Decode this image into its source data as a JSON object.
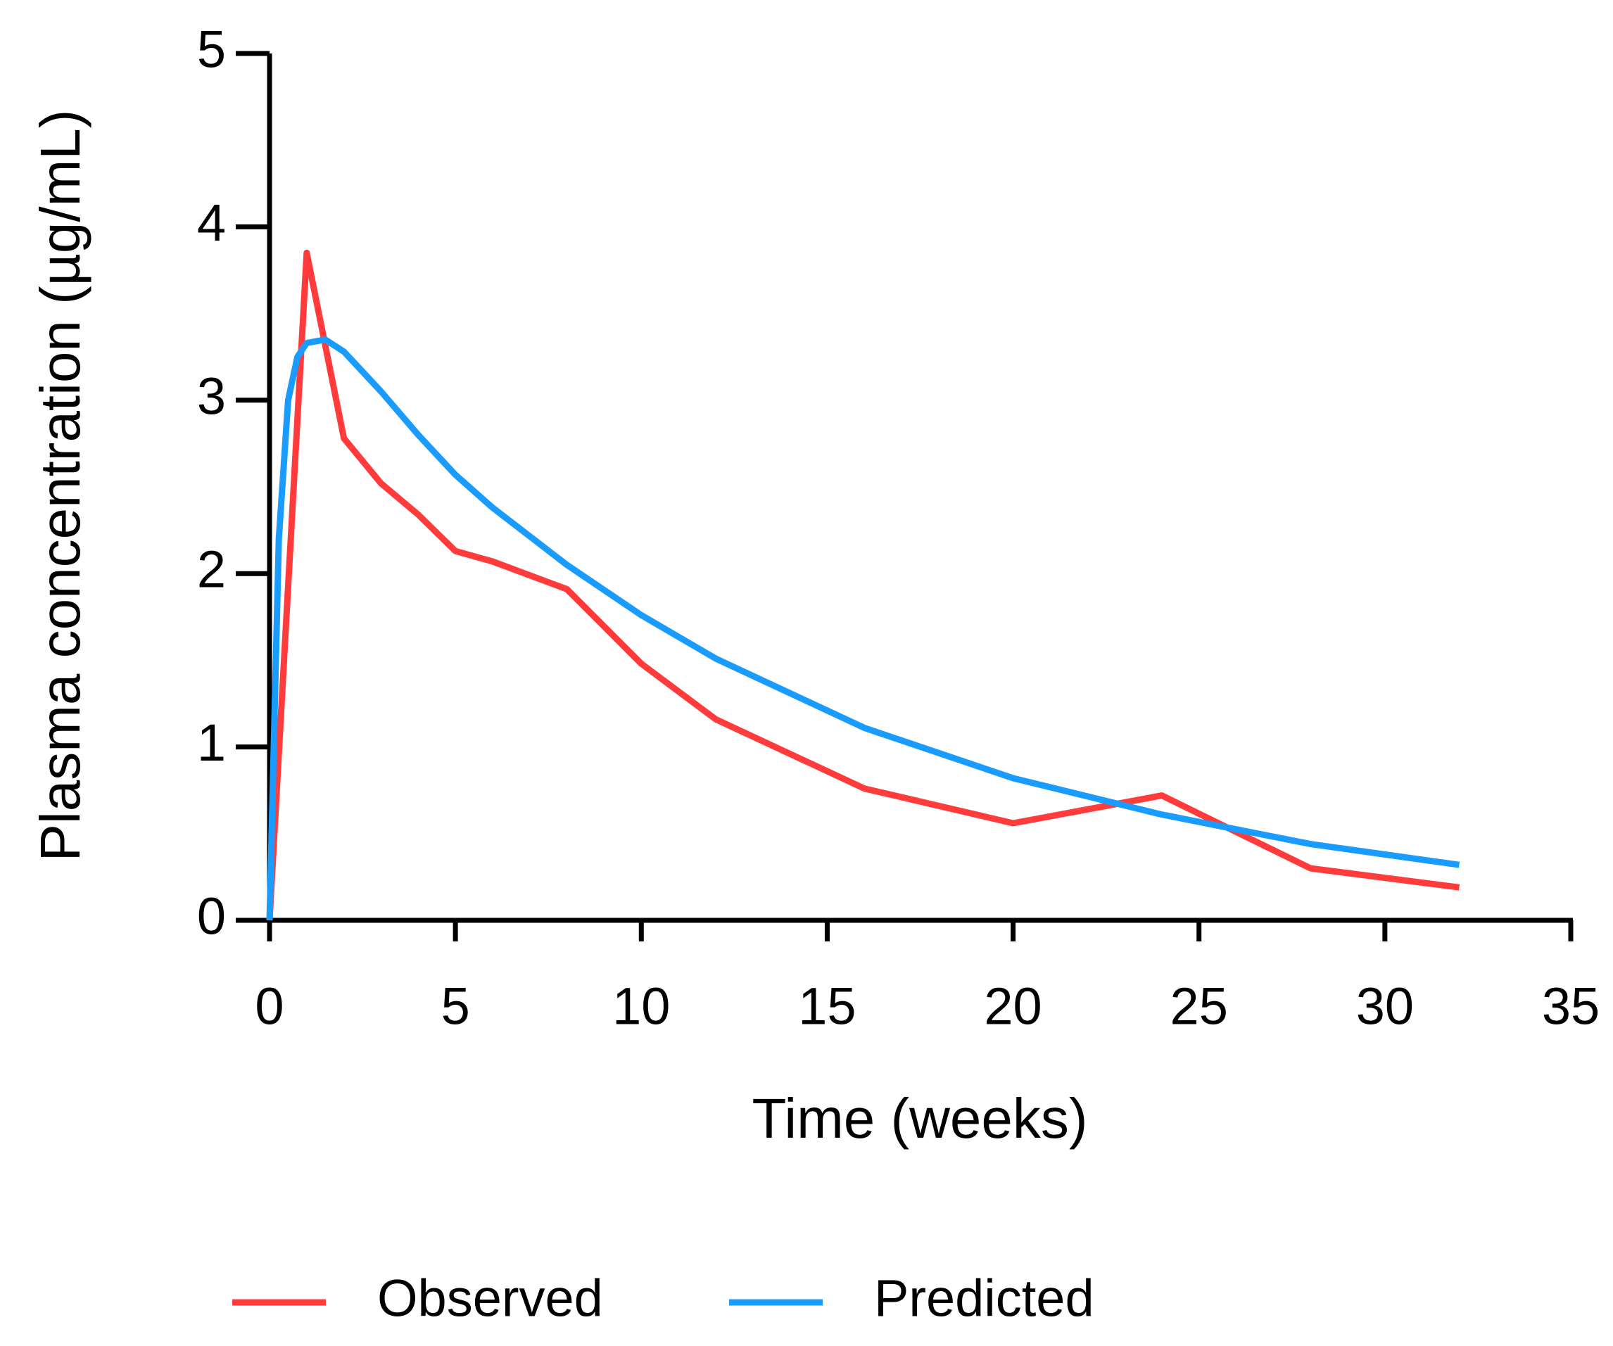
{
  "chart_data": {
    "type": "line",
    "x_label": "Time (weeks)",
    "y_label": "Plasma concentration (µg/mL)",
    "xlim": [
      0,
      35
    ],
    "xticks": [
      0,
      5,
      10,
      15,
      20,
      25,
      30,
      35
    ],
    "ylim": [
      0,
      5
    ],
    "yticks": [
      0,
      1,
      2,
      3,
      4,
      5
    ],
    "legend": "bottom",
    "series": [
      {
        "name": "Observed",
        "color": "#ff3b3b",
        "x": [
          0,
          1,
          2,
          3,
          4,
          5,
          6,
          8,
          10,
          12,
          16,
          20,
          24,
          28,
          32
        ],
        "values": [
          0,
          3.85,
          2.78,
          2.52,
          2.34,
          2.13,
          2.07,
          1.91,
          1.48,
          1.16,
          0.76,
          0.56,
          0.72,
          0.3,
          0.19
        ]
      },
      {
        "name": "Predicted",
        "color": "#1a9cff",
        "x": [
          0,
          0.25,
          0.5,
          0.75,
          1,
          1.5,
          2,
          3,
          4,
          5,
          6,
          8,
          10,
          12,
          16,
          20,
          24,
          28,
          32
        ],
        "values": [
          0,
          2.2,
          3.0,
          3.25,
          3.33,
          3.35,
          3.28,
          3.05,
          2.8,
          2.57,
          2.38,
          2.05,
          1.76,
          1.51,
          1.11,
          0.82,
          0.61,
          0.44,
          0.32
        ]
      }
    ]
  }
}
